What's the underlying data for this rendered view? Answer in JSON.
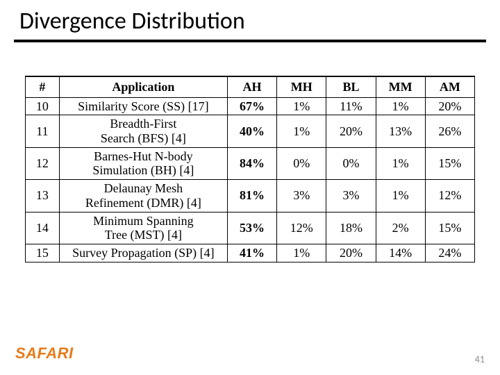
{
  "title": "Divergence Distribution",
  "columns": [
    "#",
    "Application",
    "AH",
    "MH",
    "BL",
    "MM",
    "AM"
  ],
  "rows": [
    {
      "num": "10",
      "app": "Similarity Score (SS) [17]",
      "ah": "67%",
      "mh": "1%",
      "bl": "11%",
      "mm": "1%",
      "am": "20%"
    },
    {
      "num": "11",
      "app": "Breadth-First\nSearch (BFS) [4]",
      "ah": "40%",
      "mh": "1%",
      "bl": "20%",
      "mm": "13%",
      "am": "26%"
    },
    {
      "num": "12",
      "app": "Barnes-Hut N-body\nSimulation (BH) [4]",
      "ah": "84%",
      "mh": "0%",
      "bl": "0%",
      "mm": "1%",
      "am": "15%"
    },
    {
      "num": "13",
      "app": "Delaunay Mesh\nRefinement (DMR) [4]",
      "ah": "81%",
      "mh": "3%",
      "bl": "3%",
      "mm": "1%",
      "am": "12%"
    },
    {
      "num": "14",
      "app": "Minimum Spanning\nTree (MST) [4]",
      "ah": "53%",
      "mh": "12%",
      "bl": "18%",
      "mm": "2%",
      "am": "15%"
    },
    {
      "num": "15",
      "app": "Survey Propagation (SP) [4]",
      "ah": "41%",
      "mh": "1%",
      "bl": "20%",
      "mm": "14%",
      "am": "24%"
    }
  ],
  "logo": "SAFARI",
  "page_number": "41",
  "colors": {
    "text": "#000000",
    "logo": "#e77b1a",
    "pageno": "#8a8a8a",
    "background": "#ffffff"
  },
  "fonts": {
    "title_pt": 34,
    "table_pt": 18,
    "logo_pt": 22,
    "pageno_pt": 14
  }
}
